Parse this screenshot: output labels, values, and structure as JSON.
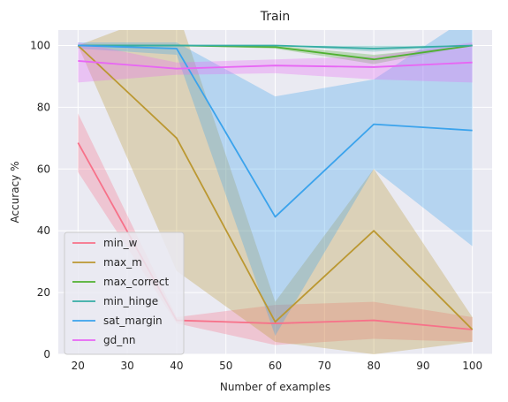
{
  "chart_data": {
    "type": "line",
    "title": "Train",
    "xlabel": "Number of examples",
    "ylabel": "Accuracy %",
    "xlim": [
      16,
      104
    ],
    "ylim": [
      0,
      105
    ],
    "x_ticks": [
      20,
      30,
      40,
      50,
      60,
      70,
      80,
      90,
      100
    ],
    "y_ticks": [
      0,
      20,
      40,
      60,
      80,
      100
    ],
    "grid": true,
    "legend_position": "lower-left",
    "x": [
      20,
      40,
      60,
      80,
      100
    ],
    "series": [
      {
        "name": "min_w",
        "color": "#f77189",
        "values": [
          68.5,
          11,
          10,
          11,
          8
        ],
        "lower": [
          59,
          10,
          3,
          5,
          4
        ],
        "upper": [
          78,
          12,
          16,
          17,
          12
        ]
      },
      {
        "name": "max_m",
        "color": "#bb9832",
        "values": [
          100,
          70,
          10.5,
          40,
          8
        ],
        "lower": [
          100,
          27,
          4,
          0,
          4
        ],
        "upper": [
          100,
          112,
          17,
          60,
          12
        ]
      },
      {
        "name": "max_correct",
        "color": "#50b131",
        "values": [
          100,
          100,
          99.5,
          95.5,
          100
        ],
        "lower": [
          100,
          100,
          99,
          94,
          100
        ],
        "upper": [
          100,
          100,
          100,
          97,
          100
        ]
      },
      {
        "name": "min_hinge",
        "color": "#36ada4",
        "values": [
          100,
          100,
          100,
          99,
          100
        ],
        "lower": [
          100,
          100,
          100,
          98,
          100
        ],
        "upper": [
          100,
          100,
          100,
          100,
          100
        ]
      },
      {
        "name": "sat_margin",
        "color": "#3ba3ec",
        "values": [
          100,
          99,
          44.5,
          74.5,
          72.5
        ],
        "lower": [
          99,
          97,
          6,
          60,
          35
        ],
        "upper": [
          101,
          101,
          83.5,
          89,
          110
        ]
      },
      {
        "name": "gd_nn",
        "color": "#e866f4",
        "values": [
          95,
          92.5,
          93.5,
          93,
          94.5
        ],
        "lower": [
          88,
          90.5,
          91,
          89,
          88
        ],
        "upper": [
          101,
          94.5,
          95.5,
          96.5,
          101
        ]
      }
    ]
  }
}
